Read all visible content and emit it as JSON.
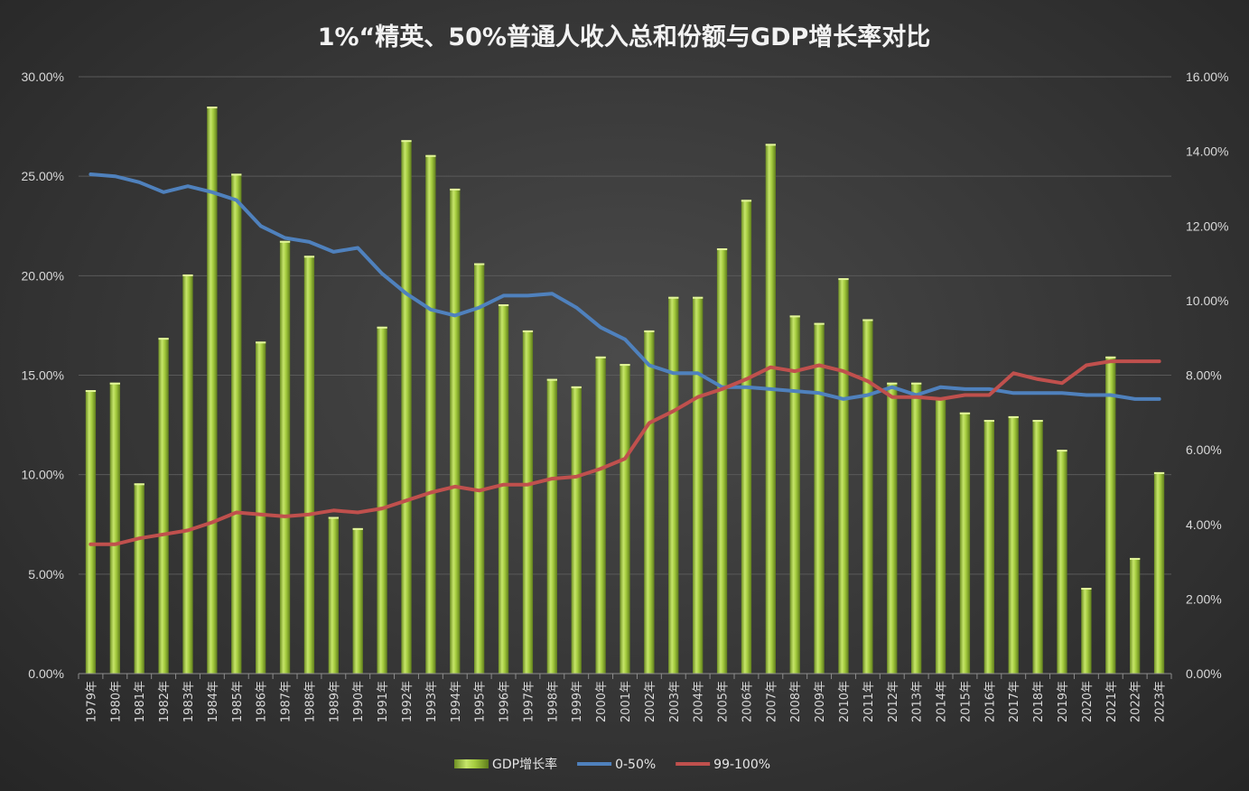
{
  "chart_data": {
    "type": "bar",
    "title": "1%“精英、50%普通人收入总和份额与GDP增长率对比",
    "categories": [
      "1979年",
      "1980年",
      "1981年",
      "1982年",
      "1983年",
      "1984年",
      "1985年",
      "1986年",
      "1987年",
      "1988年",
      "1989年",
      "1990年",
      "1991年",
      "1992年",
      "1993年",
      "1994年",
      "1995年",
      "1996年",
      "1997年",
      "1998年",
      "1999年",
      "2000年",
      "2001年",
      "2002年",
      "2003年",
      "2004年",
      "2005年",
      "2006年",
      "2007年",
      "2008年",
      "2009年",
      "2010年",
      "2011年",
      "2012年",
      "2013年",
      "2014年",
      "2015年",
      "2016年",
      "2017年",
      "2018年",
      "2019年",
      "2020年",
      "2021年",
      "2022年",
      "2023年"
    ],
    "y_left": {
      "ticks": [
        "0.00%",
        "5.00%",
        "10.00%",
        "15.00%",
        "20.00%",
        "25.00%",
        "30.00%"
      ],
      "ylim": [
        0,
        0.3
      ]
    },
    "y_right": {
      "ticks": [
        "0.00%",
        "2.00%",
        "4.00%",
        "6.00%",
        "8.00%",
        "10.00%",
        "12.00%",
        "14.00%",
        "16.00%"
      ],
      "ylim": [
        0,
        0.16
      ]
    },
    "series": [
      {
        "name": "GDP增长率",
        "type": "bar",
        "axis": "right",
        "color": "#9bc53d",
        "values": [
          0.076,
          0.078,
          0.051,
          0.09,
          0.107,
          0.152,
          0.134,
          0.089,
          0.116,
          0.112,
          0.042,
          0.039,
          0.093,
          0.143,
          0.139,
          0.13,
          0.11,
          0.099,
          0.092,
          0.079,
          0.077,
          0.085,
          0.083,
          0.092,
          0.101,
          0.101,
          0.114,
          0.127,
          0.142,
          0.096,
          0.094,
          0.106,
          0.095,
          0.078,
          0.078,
          0.074,
          0.07,
          0.068,
          0.069,
          0.068,
          0.06,
          0.023,
          0.085,
          0.031,
          0.054
        ]
      },
      {
        "name": "0-50%",
        "type": "line",
        "axis": "left",
        "color": "#4f81bd",
        "values": [
          0.251,
          0.25,
          0.247,
          0.242,
          0.245,
          0.242,
          0.238,
          0.225,
          0.219,
          0.217,
          0.212,
          0.214,
          0.201,
          0.191,
          0.183,
          0.18,
          0.184,
          0.19,
          0.19,
          0.191,
          0.184,
          0.174,
          0.168,
          0.155,
          0.151,
          0.151,
          0.144,
          0.144,
          0.143,
          0.142,
          0.141,
          0.138,
          0.14,
          0.144,
          0.14,
          0.144,
          0.143,
          0.143,
          0.141,
          0.141,
          0.141,
          0.14,
          0.14,
          0.138,
          0.138
        ]
      },
      {
        "name": "99-100%",
        "type": "line",
        "axis": "left",
        "color": "#c0504d",
        "values": [
          0.065,
          0.065,
          0.068,
          0.07,
          0.072,
          0.076,
          0.081,
          0.08,
          0.079,
          0.08,
          0.082,
          0.081,
          0.083,
          0.087,
          0.091,
          0.094,
          0.092,
          0.095,
          0.095,
          0.098,
          0.099,
          0.103,
          0.108,
          0.126,
          0.132,
          0.139,
          0.143,
          0.148,
          0.154,
          0.152,
          0.155,
          0.152,
          0.147,
          0.139,
          0.139,
          0.138,
          0.14,
          0.14,
          0.151,
          0.148,
          0.146,
          0.155,
          0.157,
          0.157,
          0.157
        ]
      }
    ],
    "legend": {
      "position": "bottom",
      "items": [
        "GDP增长率",
        "0-50%",
        "99-100%"
      ]
    },
    "grid": true
  }
}
